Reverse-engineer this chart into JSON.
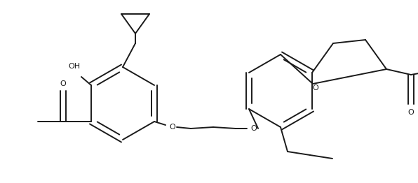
{
  "background_color": "#ffffff",
  "line_color": "#1a1a1a",
  "line_width": 1.4,
  "figsize": [
    5.96,
    2.62
  ],
  "dpi": 100,
  "xlim": [
    0,
    596
  ],
  "ylim": [
    0,
    262
  ]
}
